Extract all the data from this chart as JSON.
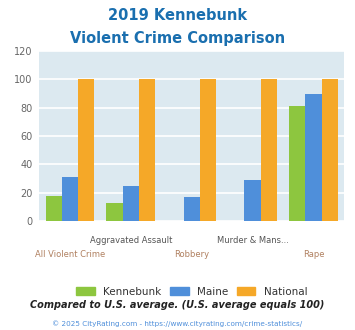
{
  "title_line1": "2019 Kennebunk",
  "title_line2": "Violent Crime Comparison",
  "title_color": "#1a6faf",
  "categories": [
    "All Violent Crime",
    "Aggravated Assault",
    "Robbery",
    "Murder & Mans...",
    "Rape"
  ],
  "labels_top": [
    "",
    "Aggravated Assault",
    "",
    "Murder & Mans...",
    ""
  ],
  "labels_bot": [
    "All Violent Crime",
    "",
    "Robbery",
    "",
    "Rape"
  ],
  "labels_bot_color": "#b08060",
  "labels_top_color": "#555555",
  "kennebunk": [
    18,
    13,
    0,
    0,
    81
  ],
  "maine": [
    31,
    25,
    17,
    29,
    90
  ],
  "national": [
    100,
    100,
    100,
    100,
    100
  ],
  "bar_colors": [
    "#8dc63f",
    "#4f8fda",
    "#f5a828"
  ],
  "ylim": [
    0,
    120
  ],
  "yticks": [
    0,
    20,
    40,
    60,
    80,
    100,
    120
  ],
  "legend_labels": [
    "Kennebunk",
    "Maine",
    "National"
  ],
  "footnote1": "Compared to U.S. average. (U.S. average equals 100)",
  "footnote2": "© 2025 CityRating.com - https://www.cityrating.com/crime-statistics/",
  "footnote1_color": "#222222",
  "footnote2_color": "#4f8fda",
  "bg_color": "#dce9f0",
  "grid_color": "#ffffff",
  "fig_bg": "#ffffff"
}
